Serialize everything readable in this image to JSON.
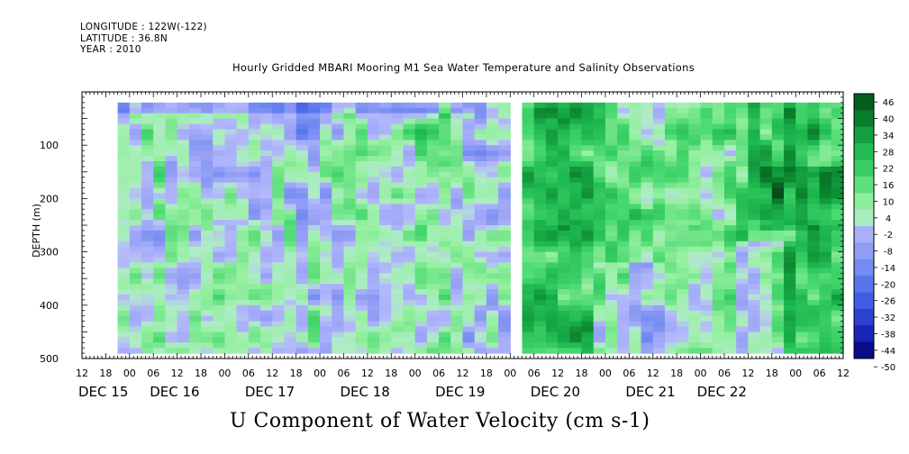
{
  "header": {
    "longitude": "LONGITUDE : 122W(-122)",
    "latitude": "LATITUDE : 36.8N",
    "year": "YEAR : 2010"
  },
  "chart_data": {
    "type": "heatmap",
    "title": "Hourly Gridded MBARI Mooring M1 Sea Water Temperature and Salinity Observations",
    "bottom_title": "U Component of Water Velocity (cm s-1)",
    "ylabel": "DEPTH (m)",
    "xlabel": "",
    "ylim": [
      500,
      0
    ],
    "xlim": [
      "DEC 15 12",
      "DEC 22 12"
    ],
    "yticks": [
      100,
      200,
      300,
      400,
      500
    ],
    "hour_ticks": [
      "12",
      "18",
      "00",
      "06",
      "12",
      "18",
      "00",
      "06",
      "12",
      "18",
      "00",
      "06",
      "12",
      "18",
      "00",
      "06",
      "12",
      "18",
      "00",
      "06",
      "12",
      "18",
      "00",
      "06",
      "12",
      "18",
      "00",
      "06",
      "12",
      "18",
      "00",
      "06",
      "12"
    ],
    "day_labels": [
      "DEC 15",
      "DEC 16",
      "DEC 17",
      "DEC 18",
      "DEC 19",
      "DEC 20",
      "DEC 21",
      "DEC 22"
    ],
    "colorbar": {
      "levels": [
        "46",
        "40",
        "34",
        "28",
        "22",
        "16",
        "10",
        "4",
        "-2",
        "-8",
        "-14",
        "-20",
        "-26",
        "-32",
        "-38",
        "-44",
        "-50"
      ],
      "range": [
        -50,
        50
      ],
      "colors": {
        "strong_positive": "#003300",
        "weak_positive": "#99ff99",
        "weak_negative": "#aab0ff",
        "strong_negative": "#000080"
      }
    },
    "description_values": {
      "data_depth_range_m": [
        20,
        490
      ],
      "data_time_start": "DEC 15 21",
      "gap_time": "DEC 20 00"
    }
  }
}
